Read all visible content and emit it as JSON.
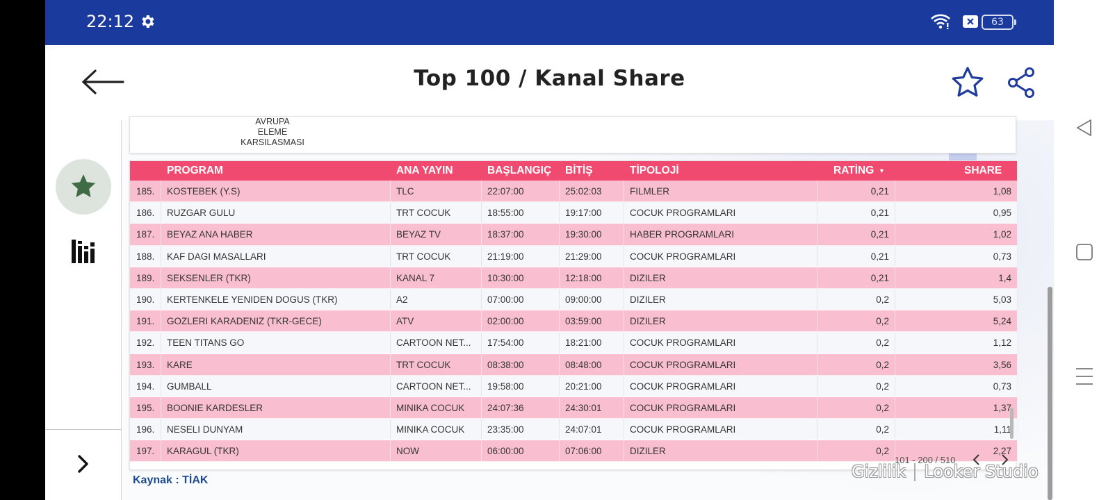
{
  "status_bar": {
    "time": "22:12",
    "battery": "63"
  },
  "app_bar": {
    "title": "Top 100  / Kanal Share"
  },
  "prev_card": {
    "lines": [
      "AVRUPA",
      "ELEME",
      "KARSILASMASI"
    ]
  },
  "table": {
    "columns": {
      "program": "PROGRAM",
      "ana_yayin": "ANA YAYIN",
      "baslangic": "BAŞLANGIÇ",
      "bitis": "BİTİŞ",
      "tipoloji": "TİPOLOJİ",
      "rating": "RATİNG",
      "share": "SHARE"
    },
    "sort_indicator": "▼",
    "rows": [
      {
        "no": "185.",
        "program": "KOSTEBEK (Y.S)",
        "channel": "TLC",
        "start": "22:07:00",
        "end": "25:02:03",
        "type": "FILMLER",
        "rating": "0,21",
        "share": "1,08"
      },
      {
        "no": "186.",
        "program": "RUZGAR GULU",
        "channel": "TRT COCUK",
        "start": "18:55:00",
        "end": "19:17:00",
        "type": "COCUK PROGRAMLARI",
        "rating": "0,21",
        "share": "0,95"
      },
      {
        "no": "187.",
        "program": "BEYAZ ANA HABER",
        "channel": "BEYAZ TV",
        "start": "18:37:00",
        "end": "19:30:00",
        "type": "HABER PROGRAMLARI",
        "rating": "0,21",
        "share": "1,02"
      },
      {
        "no": "188.",
        "program": "KAF DAGI MASALLARI",
        "channel": "TRT COCUK",
        "start": "21:19:00",
        "end": "21:29:00",
        "type": "COCUK PROGRAMLARI",
        "rating": "0,21",
        "share": "0,73"
      },
      {
        "no": "189.",
        "program": "SEKSENLER (TKR)",
        "channel": "KANAL 7",
        "start": "10:30:00",
        "end": "12:18:00",
        "type": "DIZILER",
        "rating": "0,21",
        "share": "1,4"
      },
      {
        "no": "190.",
        "program": "KERTENKELE YENIDEN DOGUS (TKR)",
        "channel": "A2",
        "start": "07:00:00",
        "end": "09:00:00",
        "type": "DIZILER",
        "rating": "0,2",
        "share": "5,03"
      },
      {
        "no": "191.",
        "program": "GOZLERI KARADENIZ (TKR-GECE)",
        "channel": "ATV",
        "start": "02:00:00",
        "end": "03:59:00",
        "type": "DIZILER",
        "rating": "0,2",
        "share": "5,24"
      },
      {
        "no": "192.",
        "program": "TEEN TITANS GO",
        "channel": "CARTOON NET...",
        "start": "17:54:00",
        "end": "18:21:00",
        "type": "COCUK PROGRAMLARI",
        "rating": "0,2",
        "share": "1,12"
      },
      {
        "no": "193.",
        "program": "KARE",
        "channel": "TRT COCUK",
        "start": "08:38:00",
        "end": "08:48:00",
        "type": "COCUK PROGRAMLARI",
        "rating": "0,2",
        "share": "3,56"
      },
      {
        "no": "194.",
        "program": "GUMBALL",
        "channel": "CARTOON NET...",
        "start": "19:58:00",
        "end": "20:21:00",
        "type": "COCUK PROGRAMLARI",
        "rating": "0,2",
        "share": "0,73"
      },
      {
        "no": "195.",
        "program": "BOONIE KARDESLER",
        "channel": "MINIKA COCUK",
        "start": "24:07:36",
        "end": "24:30:01",
        "type": "COCUK PROGRAMLARI",
        "rating": "0,2",
        "share": "1,37"
      },
      {
        "no": "196.",
        "program": "NESELI DUNYAM",
        "channel": "MINIKA COCUK",
        "start": "23:35:00",
        "end": "24:07:01",
        "type": "COCUK PROGRAMLARI",
        "rating": "0,2",
        "share": "1,11"
      },
      {
        "no": "197.",
        "program": "KARAGUL (TKR)",
        "channel": "NOW",
        "start": "06:00:00",
        "end": "07:06:00",
        "type": "DIZILER",
        "rating": "0,2",
        "share": "2,27"
      }
    ],
    "pager_text": "101 - 200 / 510"
  },
  "source_text": "Kaynak : TİAK",
  "footer": {
    "privacy": "Gizlilik",
    "brand": "Looker Studio"
  },
  "colors": {
    "status_bar": "#1a3a9e",
    "header": "#f14a70",
    "row_pink": "#f9bfd0",
    "row_light": "#f6f7fb",
    "accent_blue": "#1f3c9c"
  }
}
